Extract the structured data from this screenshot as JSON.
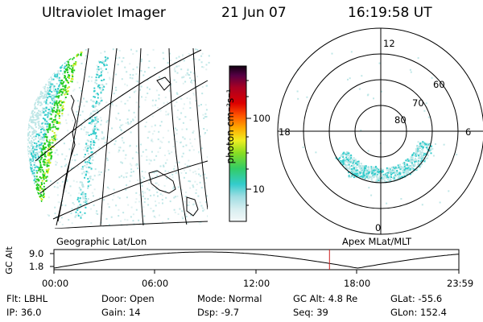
{
  "header": {
    "instrument": "Ultraviolet Imager",
    "date": "21 Jun 07",
    "time": "16:19:58 UT"
  },
  "colorbar": {
    "label": "photon cm⁻²s⁻¹",
    "ticks": [
      "100",
      "10"
    ]
  },
  "polar": {
    "mlt_labels": [
      "12",
      "18",
      "6",
      "0"
    ],
    "lat_labels": [
      "60",
      "70",
      "80"
    ]
  },
  "panel_labels": {
    "geo": "Geographic Lat/Lon",
    "apex": "Apex  MLat/MLT"
  },
  "timeline": {
    "ylabel": "GC Alt",
    "yticks": [
      "9.0",
      "1.8"
    ],
    "xticks": [
      "00:00",
      "06:00",
      "12:00",
      "18:00",
      "23:59"
    ],
    "current_time": "16:19:58"
  },
  "info": {
    "filter": "Flt: LBHL",
    "ip": "IP: 36.0",
    "door": "Door: Open",
    "gain": "Gain: 14",
    "mode": "Mode: Normal",
    "dsp": "Dsp:    -9.7",
    "gcalt": "GC Alt: 4.8 Re",
    "seq": "Seq: 39",
    "glat": "GLat: -55.6",
    "glon": "GLon: 152.4"
  },
  "colors": {
    "aurora_green": "#22cc22",
    "aurora_yellow": "#ccee22",
    "aurora_cyan": "#33cccc",
    "aurora_light": "#bfe7e7",
    "marker_red": "#cc2222"
  }
}
